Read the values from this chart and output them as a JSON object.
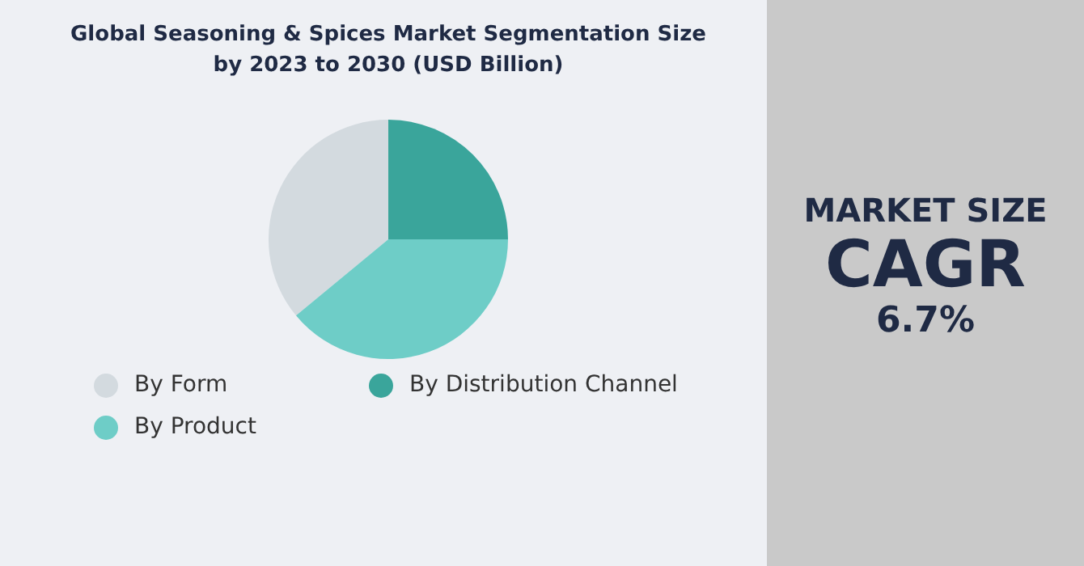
{
  "chart_data": {
    "type": "pie",
    "title": "Global Seasoning & Spices Market Segmentation Size by 2023 to 2030 (USD Billion)",
    "categories": [
      "By Form",
      "By Distribution Channel",
      "By Product"
    ],
    "values": [
      36,
      25,
      39
    ],
    "colors": [
      "#d3dadf",
      "#3aa59b",
      "#6ecdc7"
    ],
    "legend": "bottom",
    "annotations": [
      "MARKET SIZE",
      "CAGR",
      "6.7%"
    ]
  }
}
